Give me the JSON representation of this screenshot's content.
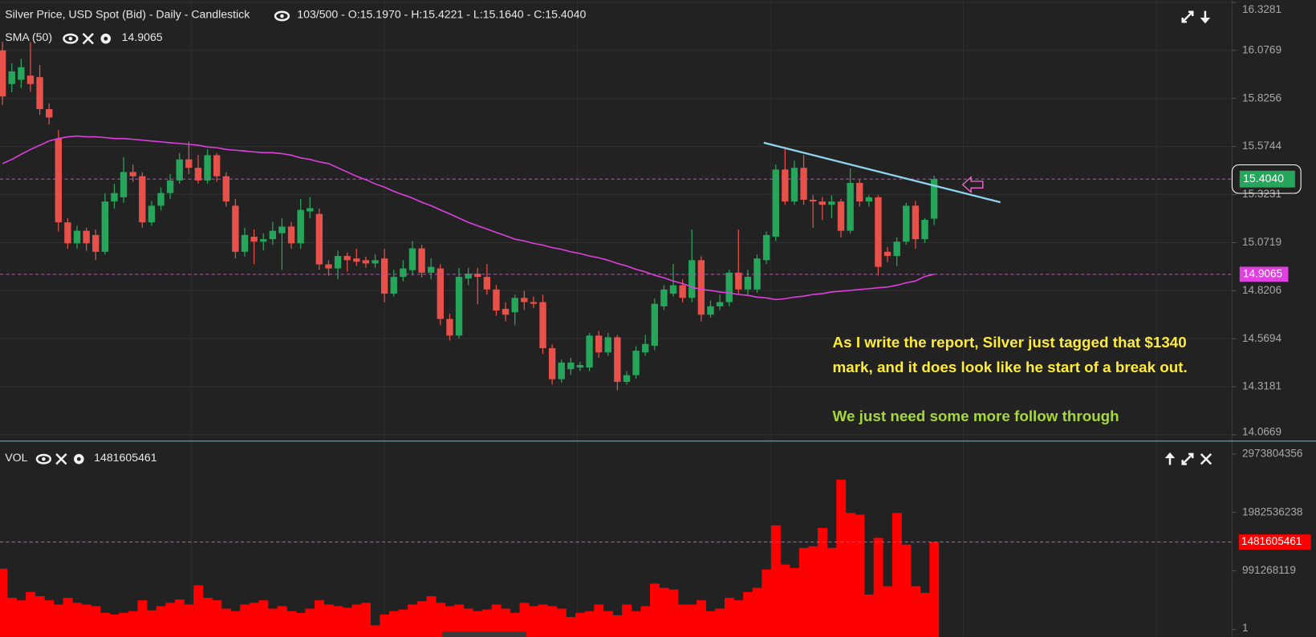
{
  "chart_data": [
    {
      "type": "candlestick",
      "title": "Silver Price, USD Spot (Bid) - Daily - Candlestick",
      "info": "103/500 - O:15.1970 - H:15.4221 - L:15.1640 - C:15.4040",
      "up_color": "#26a65b",
      "down_color": "#e8504a",
      "open": [
        16.077,
        15.901,
        15.923,
        15.945,
        15.937,
        15.77,
        15.616,
        15.178,
        15.068,
        15.134,
        15.112,
        15.024,
        15.287,
        15.309,
        15.441,
        15.419,
        15.178,
        15.265,
        15.331,
        15.397,
        15.507,
        15.463,
        15.397,
        15.529,
        15.419,
        15.265,
        15.024,
        15.103,
        15.077,
        15.09,
        15.121,
        15.156,
        15.068,
        15.235,
        15.222,
        14.958,
        14.937,
        15.002,
        14.989,
        14.98,
        14.963,
        14.989,
        14.805,
        14.893,
        14.928,
        15.042,
        14.915,
        14.937,
        14.673,
        14.586,
        14.884,
        14.91,
        14.893,
        14.827,
        14.726,
        14.708,
        14.783,
        14.761,
        14.761,
        14.52,
        14.358,
        14.41,
        14.419,
        14.419,
        14.586,
        14.498,
        14.577,
        14.344,
        14.379,
        14.498,
        14.533,
        14.739,
        14.805,
        14.849,
        14.783,
        14.98,
        14.695,
        14.739,
        14.761,
        14.915,
        14.827,
        14.827,
        14.98,
        15.103,
        15.454,
        15.287,
        15.463,
        15.296,
        15.287,
        15.27,
        15.287,
        15.134,
        15.384,
        15.287,
        15.309,
        15.024,
        15.002,
        15.077,
        15.265,
        15.09,
        15.197
      ],
      "high": [
        16.121,
        16.01,
        16.033,
        16.12,
        16.0,
        15.8,
        15.66,
        15.2,
        15.16,
        15.15,
        15.14,
        15.33,
        15.38,
        15.52,
        15.48,
        15.44,
        15.29,
        15.36,
        15.43,
        15.54,
        15.6,
        15.53,
        15.56,
        15.54,
        15.44,
        15.3,
        15.15,
        15.14,
        15.12,
        15.18,
        15.2,
        15.18,
        15.3,
        15.31,
        15.25,
        14.98,
        15.03,
        15.02,
        15.04,
        15.0,
        15.01,
        15.04,
        14.93,
        14.98,
        15.08,
        15.06,
        14.99,
        14.96,
        14.7,
        14.94,
        14.94,
        14.94,
        14.96,
        14.85,
        14.76,
        14.8,
        14.82,
        14.79,
        14.8,
        14.54,
        14.46,
        14.47,
        14.45,
        14.6,
        14.61,
        14.6,
        14.59,
        14.4,
        14.53,
        14.59,
        14.78,
        14.85,
        14.96,
        14.88,
        15.14,
        15.0,
        14.77,
        14.8,
        14.93,
        15.14,
        14.93,
        15.01,
        15.13,
        15.48,
        15.57,
        15.5,
        15.53,
        15.32,
        15.31,
        15.32,
        15.3,
        15.46,
        15.4,
        15.32,
        15.32,
        15.05,
        15.1,
        15.28,
        15.29,
        15.2,
        15.4221
      ],
      "low": [
        15.792,
        15.858,
        15.88,
        15.86,
        15.74,
        15.69,
        15.13,
        15.04,
        15.04,
        15.03,
        14.98,
        15.01,
        15.25,
        15.28,
        15.39,
        15.15,
        15.16,
        15.24,
        15.3,
        15.38,
        15.43,
        15.38,
        15.38,
        15.39,
        15.26,
        14.99,
        15.0,
        14.96,
        15.03,
        15.06,
        14.93,
        15.04,
        15.04,
        15.2,
        14.93,
        14.9,
        14.88,
        14.92,
        14.95,
        14.94,
        14.94,
        14.76,
        14.79,
        14.87,
        14.9,
        14.89,
        14.88,
        14.64,
        14.56,
        14.57,
        14.85,
        14.75,
        14.8,
        14.69,
        14.66,
        14.64,
        14.72,
        14.73,
        14.49,
        14.33,
        14.34,
        14.38,
        14.4,
        14.4,
        14.47,
        14.48,
        14.3,
        14.33,
        14.36,
        14.48,
        14.51,
        14.72,
        14.79,
        14.76,
        14.76,
        14.66,
        14.68,
        14.72,
        14.74,
        14.8,
        14.8,
        14.81,
        14.96,
        15.08,
        15.27,
        15.27,
        15.27,
        15.15,
        15.19,
        15.2,
        15.1,
        15.12,
        15.26,
        15.26,
        14.9,
        14.97,
        14.95,
        15.06,
        15.04,
        15.07,
        15.164
      ],
      "close": [
        15.836,
        15.967,
        15.989,
        15.901,
        15.77,
        15.726,
        15.178,
        15.068,
        15.134,
        15.068,
        15.024,
        15.287,
        15.331,
        15.441,
        15.419,
        15.178,
        15.265,
        15.331,
        15.397,
        15.507,
        15.463,
        15.397,
        15.529,
        15.419,
        15.287,
        15.024,
        15.112,
        15.077,
        15.09,
        15.134,
        15.156,
        15.068,
        15.243,
        15.252,
        14.958,
        14.937,
        15.002,
        14.98,
        14.972,
        14.963,
        14.98,
        14.805,
        14.893,
        14.937,
        15.042,
        14.915,
        14.945,
        14.673,
        14.586,
        14.893,
        14.91,
        14.893,
        14.827,
        14.717,
        14.695,
        14.783,
        14.761,
        14.752,
        14.52,
        14.358,
        14.445,
        14.445,
        14.432,
        14.586,
        14.498,
        14.577,
        14.344,
        14.379,
        14.507,
        14.542,
        14.752,
        14.827,
        14.849,
        14.783,
        14.98,
        14.695,
        14.739,
        14.761,
        14.915,
        14.827,
        14.893,
        14.989,
        15.112,
        15.454,
        15.287,
        15.463,
        15.296,
        15.287,
        15.27,
        15.287,
        15.134,
        15.384,
        15.287,
        15.309,
        14.945,
        15.002,
        15.077,
        15.265,
        15.09,
        15.191,
        15.404
      ],
      "last_price": {
        "value": 15.404,
        "label": "15.4040"
      },
      "sma": {
        "name": "SMA (50)",
        "color": "#e040e0",
        "last": 14.9065,
        "values": [
          15.485,
          15.507,
          15.533,
          15.559,
          15.581,
          15.603,
          15.616,
          15.625,
          15.629,
          15.625,
          15.625,
          15.621,
          15.616,
          15.616,
          15.612,
          15.608,
          15.603,
          15.599,
          15.594,
          15.59,
          15.586,
          15.581,
          15.572,
          15.568,
          15.559,
          15.555,
          15.551,
          15.546,
          15.542,
          15.542,
          15.537,
          15.529,
          15.515,
          15.507,
          15.494,
          15.485,
          15.463,
          15.441,
          15.419,
          15.401,
          15.379,
          15.362,
          15.34,
          15.322,
          15.305,
          15.283,
          15.265,
          15.243,
          15.222,
          15.2,
          15.178,
          15.16,
          15.143,
          15.125,
          15.108,
          15.09,
          15.081,
          15.068,
          15.059,
          15.046,
          15.037,
          15.024,
          15.015,
          15.002,
          14.993,
          14.98,
          14.963,
          14.95,
          14.932,
          14.919,
          14.901,
          14.888,
          14.871,
          14.858,
          14.84,
          14.827,
          14.822,
          14.814,
          14.809,
          14.801,
          14.796,
          14.787,
          14.783,
          14.774,
          14.779,
          14.787,
          14.792,
          14.801,
          14.805,
          14.814,
          14.818,
          14.822,
          14.827,
          14.831,
          14.836,
          14.84,
          14.849,
          14.862,
          14.871,
          14.895,
          14.9065
        ]
      },
      "ylim": [
        14.037,
        16.34
      ],
      "yticks": [
        16.3281,
        16.0769,
        15.8256,
        15.5744,
        15.3231,
        15.0719,
        14.8206,
        14.5694,
        14.3181,
        14.0669
      ],
      "grid": true,
      "annotations": [
        "As I write the report,  Silver just tagged that $1340",
        "mark,  and it does look like he start of a break out.",
        "We just need some more  follow through"
      ]
    },
    {
      "type": "bar",
      "title": "VOL",
      "color": "#ff0000",
      "last": 1481605461,
      "values": [
        1029000000,
        536000000,
        494000000,
        635000000,
        564000000,
        494000000,
        423000000,
        536000000,
        451000000,
        423000000,
        395000000,
        282000000,
        254000000,
        282000000,
        310000000,
        494000000,
        324000000,
        395000000,
        451000000,
        508000000,
        423000000,
        747000000,
        536000000,
        494000000,
        353000000,
        310000000,
        423000000,
        451000000,
        494000000,
        353000000,
        395000000,
        310000000,
        282000000,
        353000000,
        494000000,
        423000000,
        395000000,
        367000000,
        423000000,
        451000000,
        71000000,
        254000000,
        310000000,
        338000000,
        423000000,
        479000000,
        564000000,
        451000000,
        395000000,
        423000000,
        353000000,
        310000000,
        338000000,
        423000000,
        353000000,
        282000000,
        451000000,
        395000000,
        423000000,
        395000000,
        353000000,
        212000000,
        282000000,
        310000000,
        423000000,
        310000000,
        240000000,
        423000000,
        310000000,
        395000000,
        776000000,
        705000000,
        677000000,
        423000000,
        423000000,
        494000000,
        310000000,
        353000000,
        536000000,
        494000000,
        635000000,
        705000000,
        1015000000,
        1763000000,
        1100000000,
        1043000000,
        1382000000,
        1410000000,
        1720000000,
        1382000000,
        2538000000,
        1974000000,
        1946000000,
        592000000,
        1551000000,
        733000000,
        1974000000,
        1438000000,
        733000000,
        620000000,
        1481605461
      ],
      "ylim": [
        -127000000,
        3171000000
      ],
      "yticks": [
        2973804356,
        1982536238,
        991268119,
        1
      ]
    }
  ]
}
